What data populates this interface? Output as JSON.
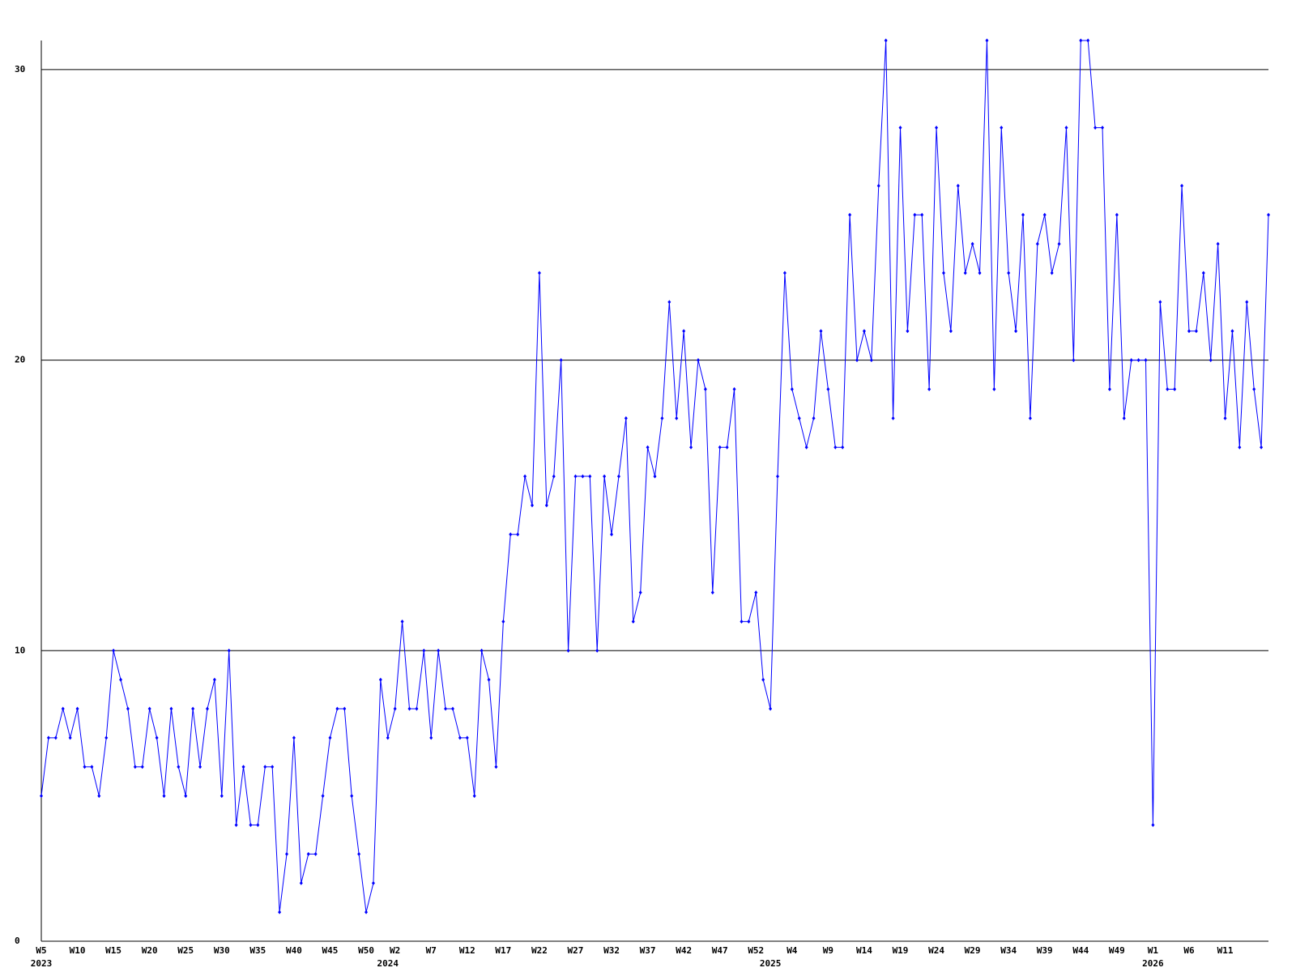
{
  "chart_data": {
    "type": "line",
    "categories": [
      "W5",
      null,
      null,
      null,
      null,
      "W10",
      null,
      null,
      null,
      null,
      "W15",
      null,
      null,
      null,
      null,
      "W20",
      null,
      null,
      null,
      null,
      "W25",
      null,
      null,
      null,
      null,
      "W30",
      null,
      null,
      null,
      null,
      "W35",
      null,
      null,
      null,
      null,
      "W40",
      null,
      null,
      null,
      null,
      "W45",
      null,
      null,
      null,
      null,
      "W50",
      null,
      null,
      null,
      "W2",
      null,
      null,
      null,
      null,
      "W7",
      null,
      null,
      null,
      null,
      "W12",
      null,
      null,
      null,
      null,
      "W17",
      null,
      null,
      null,
      null,
      "W22",
      null,
      null,
      null,
      null,
      "W27",
      null,
      null,
      null,
      null,
      "W32",
      null,
      null,
      null,
      null,
      "W37",
      null,
      null,
      null,
      null,
      "W42",
      null,
      null,
      null,
      null,
      "W47",
      null,
      null,
      null,
      null,
      "W52",
      null,
      null,
      null,
      null,
      "W4",
      null,
      null,
      null,
      null,
      "W9",
      null,
      null,
      null,
      null,
      "W14",
      null,
      null,
      null,
      null,
      "W19",
      null,
      null,
      null,
      null,
      "W24",
      null,
      null,
      null,
      null,
      "W29",
      null,
      null,
      null,
      null,
      "W34",
      null,
      null,
      null,
      null,
      "W39",
      null,
      null,
      null,
      null,
      "W44",
      null,
      null,
      null,
      null,
      "W49",
      null,
      null,
      null,
      null,
      "W1",
      null,
      null,
      null,
      null,
      "W6",
      null,
      null,
      null,
      null,
      "W11",
      null,
      null,
      null,
      null,
      null,
      null
    ],
    "category_years": [
      "2023",
      null,
      null,
      null,
      null,
      null,
      null,
      null,
      null,
      null,
      null,
      null,
      null,
      null,
      null,
      null,
      null,
      null,
      null,
      null,
      null,
      null,
      null,
      null,
      null,
      null,
      null,
      null,
      null,
      null,
      null,
      null,
      null,
      null,
      null,
      null,
      null,
      null,
      null,
      null,
      null,
      null,
      null,
      null,
      null,
      null,
      null,
      null,
      "2024",
      null,
      null,
      null,
      null,
      null,
      null,
      null,
      null,
      null,
      null,
      null,
      null,
      null,
      null,
      null,
      null,
      null,
      null,
      null,
      null,
      null,
      null,
      null,
      null,
      null,
      null,
      null,
      null,
      null,
      null,
      null,
      null,
      null,
      null,
      null,
      null,
      null,
      null,
      null,
      null,
      null,
      null,
      null,
      null,
      null,
      null,
      null,
      null,
      null,
      null,
      null,
      null,
      "2025",
      null,
      null,
      null,
      null,
      null,
      null,
      null,
      null,
      null,
      null,
      null,
      null,
      null,
      null,
      null,
      null,
      null,
      null,
      null,
      null,
      null,
      null,
      null,
      null,
      null,
      null,
      null,
      null,
      null,
      null,
      null,
      null,
      null,
      null,
      null,
      null,
      null,
      null,
      null,
      null,
      null,
      null,
      null,
      null,
      null,
      null,
      null,
      null,
      null,
      null,
      null,
      null,
      "2026",
      null,
      null,
      null,
      null,
      null,
      null,
      null,
      null,
      null,
      null,
      null,
      null,
      null,
      null,
      null,
      null
    ],
    "series": [
      {
        "color": "#0000ff",
        "values": [
          5,
          7,
          7,
          8,
          7,
          8,
          6,
          6,
          5,
          7,
          10,
          9,
          8,
          6,
          6,
          8,
          7,
          5,
          8,
          6,
          5,
          8,
          6,
          8,
          9,
          5,
          10,
          4,
          6,
          4,
          4,
          6,
          6,
          1,
          3,
          7,
          2,
          3,
          3,
          5,
          7,
          8,
          8,
          5,
          3,
          1,
          2,
          9,
          7,
          8,
          11,
          8,
          8,
          10,
          7,
          10,
          8,
          8,
          7,
          7,
          5,
          10,
          9,
          6,
          11,
          14,
          14,
          16,
          15,
          23,
          15,
          16,
          20,
          10,
          16,
          16,
          16,
          10,
          16,
          14,
          16,
          18,
          11,
          12,
          17,
          16,
          18,
          22,
          18,
          21,
          17,
          20,
          19,
          12,
          17,
          17,
          19,
          11,
          11,
          12,
          9,
          8,
          16,
          23,
          19,
          18,
          17,
          18,
          21,
          19,
          17,
          17,
          25,
          20,
          21,
          20,
          26,
          31,
          18,
          28,
          21,
          25,
          25,
          19,
          28,
          23,
          21,
          26,
          23,
          24,
          23,
          31,
          19,
          28,
          23,
          21,
          25,
          18,
          24,
          25,
          23,
          24,
          28,
          20,
          31,
          31,
          28,
          28,
          19,
          25,
          18,
          20,
          20,
          20,
          4,
          22,
          19,
          19,
          26,
          21,
          21,
          23,
          20,
          24,
          18,
          21,
          17,
          22,
          19,
          17,
          25
        ]
      }
    ],
    "ylim": [
      0,
      31
    ],
    "yticks": [
      0,
      10,
      20,
      30
    ],
    "grid": true
  }
}
